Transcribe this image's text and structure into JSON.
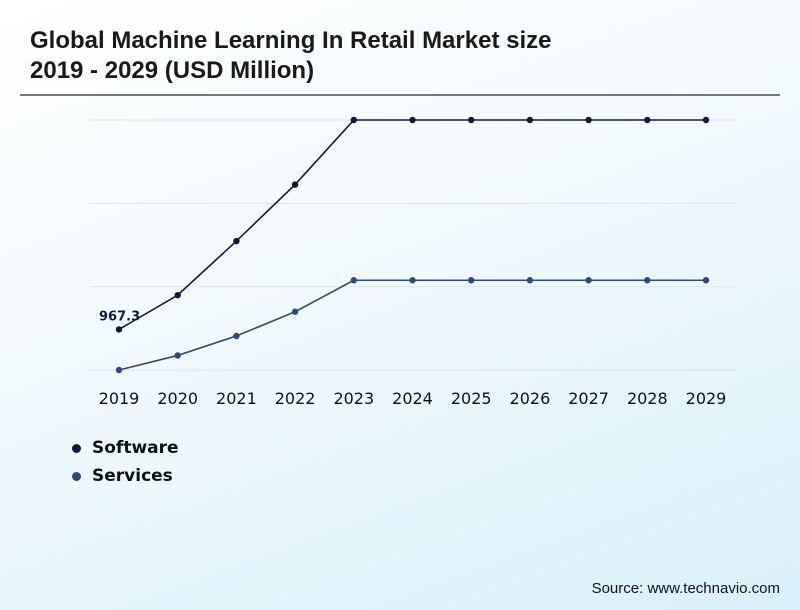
{
  "chart_data": {
    "type": "line",
    "title": "Global Machine Learning In Retail Market size",
    "subtitle": "2019 - 2029 (USD Million)",
    "categories": [
      "2019",
      "2020",
      "2021",
      "2022",
      "2023",
      "2024",
      "2025",
      "2026",
      "2027",
      "2028",
      "2029"
    ],
    "series": [
      {
        "name": "Software",
        "color": "#0d1b3e",
        "values": [
          967.3,
          1391,
          2059,
          2757,
          3555,
          3555,
          3555,
          3555,
          3555,
          3555,
          3555
        ]
      },
      {
        "name": "Services",
        "color": "#2e4a7d",
        "values": [
          466,
          646,
          886,
          1186,
          1575,
          1575,
          1575,
          1575,
          1575,
          1575,
          1575
        ]
      }
    ],
    "data_labels": [
      {
        "series": "Software",
        "category": "2019",
        "text": "967.3"
      }
    ],
    "ylim": [
      466,
      3555
    ],
    "grid": true,
    "xlabel": "",
    "ylabel": "",
    "legend": "bottom-left"
  },
  "source": "Source: www.technavio.com"
}
